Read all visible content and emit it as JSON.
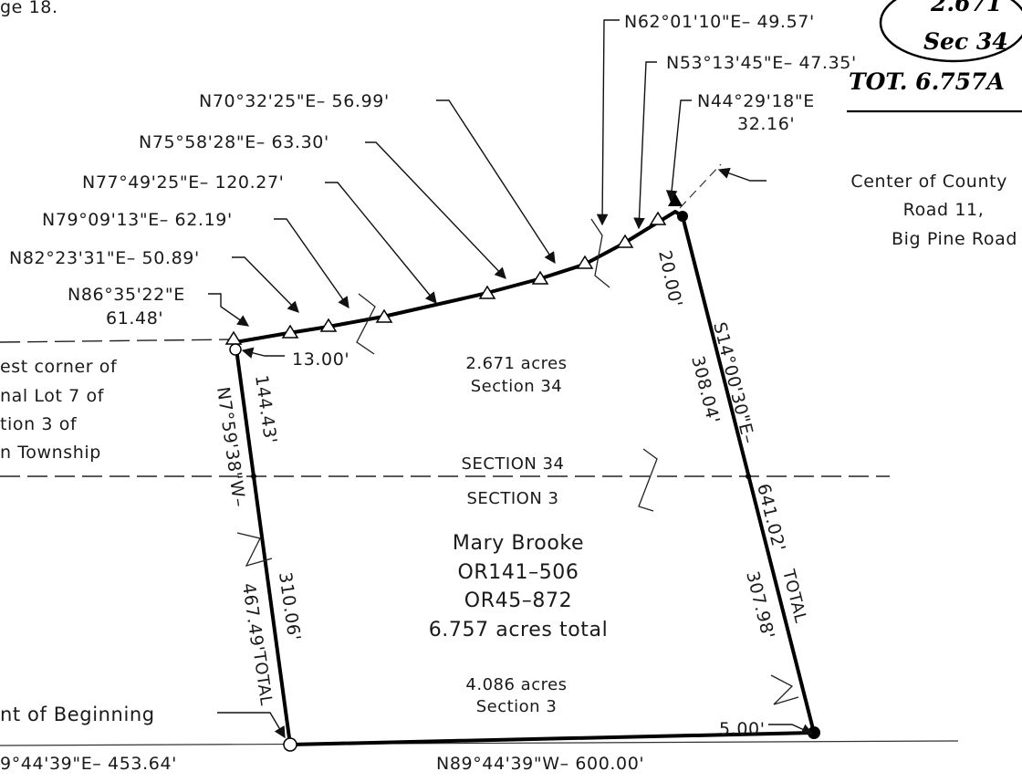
{
  "header_fragment": "ge 18.",
  "handwritten_note": {
    "line1": "2.671",
    "line2": "Sec 34",
    "total": "TOT. 6.757A"
  },
  "boundary_calls": [
    "N62°01'10\"E– 49.57'",
    "N53°13'45\"E– 47.35'",
    "N44°29'18\"E",
    "32.16'",
    "N70°32'25\"E– 56.99'",
    "N75°58'28\"E– 63.30'",
    "N77°49'25\"E– 120.27'",
    "N79°09'13\"E– 62.19'",
    "N82°23'31\"E– 50.89'",
    "N86°35'22\"E",
    "61.48'"
  ],
  "road_label": [
    "Center of County",
    "Road 11,",
    "Big Pine Road"
  ],
  "corner_label": [
    "est corner of",
    "nal Lot 7 of",
    "tion 3 of",
    "n Township"
  ],
  "offsets": {
    "road_offset": "20.00'",
    "west_offset": "13.00'",
    "south_offset": "5.00'"
  },
  "east_line": {
    "bearing": "S14°00'30\"E–",
    "upper": "308.04'",
    "total": "641.02'",
    "total_word": "TOTAL",
    "lower": "307.98'"
  },
  "west_line": {
    "bearing": "N7°59'38\"W–",
    "upper": "144.43'",
    "total": "467.49'",
    "total_word": "TOTAL",
    "lower": "310.06'"
  },
  "section_34_area": {
    "acres": "2.671 acres",
    "section": "Section 34"
  },
  "section_3_area": {
    "acres": "4.086 acres",
    "section": "Section 3"
  },
  "section_line": {
    "upper": "SECTION 34",
    "lower": "SECTION 3"
  },
  "owner": {
    "name": "Mary Brooke",
    "ref1": "OR141–506",
    "ref2": "OR45–872",
    "total": "6.757 acres total"
  },
  "point_of_beginning": "nt of Beginning",
  "south_line": {
    "main": "N89°44'39\"W– 600.00'",
    "west": "9°44'39\"E– 453.64'"
  }
}
